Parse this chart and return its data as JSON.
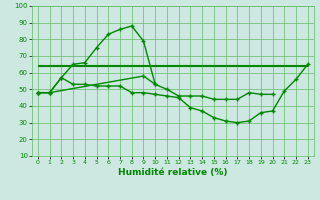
{
  "x": [
    0,
    1,
    2,
    3,
    4,
    5,
    6,
    7,
    8,
    9,
    10,
    11,
    12,
    13,
    14,
    15,
    16,
    17,
    18,
    19,
    20,
    21,
    22,
    23
  ],
  "line1": [
    48,
    48,
    57,
    65,
    66,
    75,
    83,
    86,
    88,
    79,
    53,
    null,
    null,
    null,
    null,
    null,
    null,
    null,
    null,
    null,
    null,
    null,
    null,
    null
  ],
  "line2": [
    48,
    48,
    57,
    53,
    53,
    52,
    52,
    52,
    48,
    48,
    47,
    46,
    45,
    39,
    37,
    33,
    31,
    30,
    31,
    36,
    37,
    49,
    56,
    65
  ],
  "line3": [
    48,
    48,
    null,
    null,
    null,
    null,
    null,
    null,
    null,
    58,
    53,
    50,
    46,
    46,
    46,
    44,
    44,
    44,
    48,
    47,
    47,
    null,
    null,
    null
  ],
  "hline": 64,
  "hline_x_start": 0,
  "hline_x_end": 23,
  "bg_color": "#cce8e0",
  "grid_color": "#66bb66",
  "line_color": "#008800",
  "xlabel": "Humidité relative (%)",
  "ylim": [
    10,
    100
  ],
  "xlim": [
    -0.5,
    23.5
  ],
  "yticks": [
    10,
    20,
    30,
    40,
    50,
    60,
    70,
    80,
    90,
    100
  ],
  "xticks": [
    0,
    1,
    2,
    3,
    4,
    5,
    6,
    7,
    8,
    9,
    10,
    11,
    12,
    13,
    14,
    15,
    16,
    17,
    18,
    19,
    20,
    21,
    22,
    23
  ]
}
